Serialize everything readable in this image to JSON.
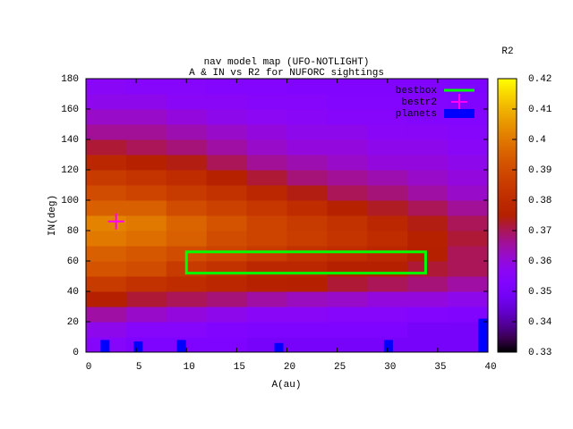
{
  "chart_data": {
    "type": "heatmap",
    "title": "nav model map (UFO-NOTLIGHT)",
    "subtitle": "A & IN vs R2 for NUFORC sightings",
    "x_label": "A(au)",
    "y_label": "IN(deg)",
    "colorbar_label": "R2",
    "x": [
      2,
      6,
      10,
      14,
      18,
      22,
      26,
      30,
      34,
      38
    ],
    "y": [
      5,
      15,
      25,
      35,
      45,
      55,
      65,
      75,
      85,
      95,
      105,
      115,
      125,
      135,
      145,
      155,
      165,
      175
    ],
    "z": [
      [
        0.355,
        0.352,
        0.352,
        0.352,
        0.35,
        0.35,
        0.35,
        0.35,
        0.35,
        0.35
      ],
      [
        0.358,
        0.355,
        0.355,
        0.353,
        0.352,
        0.352,
        0.352,
        0.352,
        0.35,
        0.35
      ],
      [
        0.365,
        0.362,
        0.36,
        0.358,
        0.356,
        0.356,
        0.355,
        0.355,
        0.354,
        0.353
      ],
      [
        0.375,
        0.372,
        0.37,
        0.368,
        0.365,
        0.363,
        0.362,
        0.36,
        0.36,
        0.358
      ],
      [
        0.385,
        0.382,
        0.38,
        0.378,
        0.376,
        0.375,
        0.372,
        0.37,
        0.368,
        0.365
      ],
      [
        0.392,
        0.39,
        0.385,
        0.382,
        0.378,
        0.378,
        0.375,
        0.375,
        0.372,
        0.37
      ],
      [
        0.395,
        0.393,
        0.39,
        0.388,
        0.385,
        0.382,
        0.38,
        0.378,
        0.375,
        0.37
      ],
      [
        0.4,
        0.398,
        0.395,
        0.39,
        0.388,
        0.386,
        0.383,
        0.38,
        0.376,
        0.372
      ],
      [
        0.402,
        0.4,
        0.396,
        0.392,
        0.388,
        0.385,
        0.382,
        0.378,
        0.374,
        0.37
      ],
      [
        0.395,
        0.395,
        0.39,
        0.387,
        0.384,
        0.38,
        0.376,
        0.373,
        0.37,
        0.366
      ],
      [
        0.39,
        0.388,
        0.385,
        0.382,
        0.378,
        0.374,
        0.37,
        0.368,
        0.365,
        0.362
      ],
      [
        0.385,
        0.383,
        0.38,
        0.376,
        0.372,
        0.368,
        0.366,
        0.364,
        0.362,
        0.36
      ],
      [
        0.378,
        0.376,
        0.374,
        0.37,
        0.366,
        0.364,
        0.362,
        0.36,
        0.36,
        0.358
      ],
      [
        0.372,
        0.37,
        0.368,
        0.365,
        0.362,
        0.36,
        0.36,
        0.358,
        0.358,
        0.356
      ],
      [
        0.366,
        0.366,
        0.364,
        0.362,
        0.36,
        0.358,
        0.358,
        0.356,
        0.356,
        0.355
      ],
      [
        0.362,
        0.362,
        0.36,
        0.358,
        0.357,
        0.356,
        0.355,
        0.355,
        0.354,
        0.354
      ],
      [
        0.358,
        0.358,
        0.356,
        0.356,
        0.355,
        0.355,
        0.354,
        0.354,
        0.354,
        0.353
      ],
      [
        0.356,
        0.355,
        0.355,
        0.354,
        0.354,
        0.353,
        0.353,
        0.353,
        0.353,
        0.352
      ]
    ],
    "xlim": [
      0,
      40
    ],
    "ylim": [
      0,
      180
    ],
    "xticks": [
      0,
      5,
      10,
      15,
      20,
      25,
      30,
      35,
      40
    ],
    "yticks": [
      0,
      20,
      40,
      60,
      80,
      100,
      120,
      140,
      160,
      180
    ],
    "cblim": [
      0.33,
      0.42
    ],
    "cbticks": [
      0.33,
      0.34,
      0.35,
      0.36,
      0.37,
      0.38,
      0.39,
      0.4,
      0.41,
      0.42
    ],
    "overlays": [
      {
        "name": "bestbox",
        "kind": "box",
        "color": "#00ff00",
        "x": [
          10,
          33.8
        ],
        "y": [
          52,
          66
        ]
      },
      {
        "name": "bestr2",
        "kind": "point",
        "color": "#ff00ff",
        "x": [
          3
        ],
        "y": [
          86
        ]
      },
      {
        "name": "planets",
        "kind": "bars",
        "color": "#0000ff",
        "x": [
          1.9,
          5.2,
          9.5,
          19.2,
          30.1,
          39.5
        ],
        "values": [
          8,
          7,
          8,
          6,
          8,
          22
        ]
      }
    ]
  }
}
